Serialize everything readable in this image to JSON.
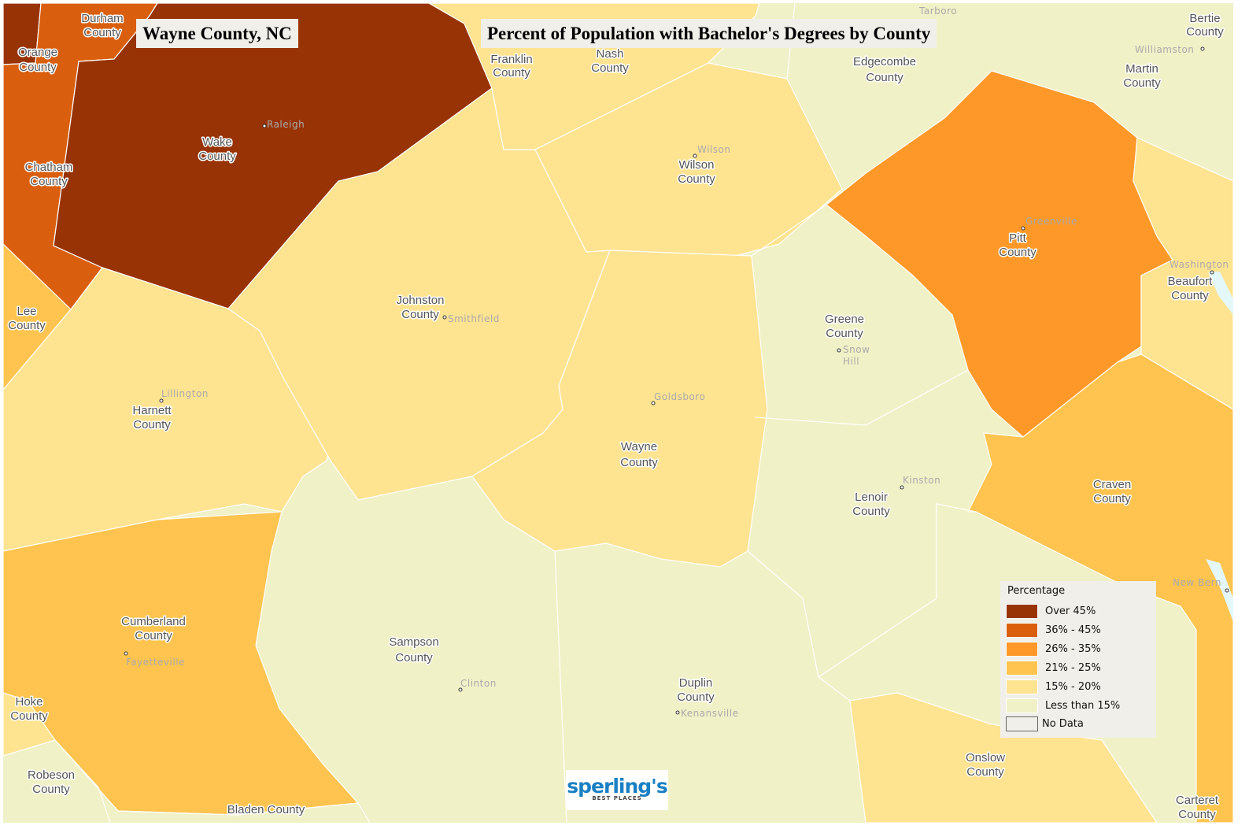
{
  "title_left": "Wayne County, NC",
  "title_right": "Percent of Population with Bachelor's Degrees by County",
  "colors": {
    "over_45": "#983305",
    "36_45": "#d95f0e",
    "26_35": "#fe9929",
    "21_25": "#fec44f",
    "15_20": "#fee391",
    "under_15": "#f1f1c8",
    "no_data": "#f0efe9",
    "water": "#e4f8fa"
  },
  "legend": {
    "title": "Percentage",
    "items": [
      {
        "label": "Over 45%",
        "color": "#983305"
      },
      {
        "label": "36% - 45%",
        "color": "#d95f0e"
      },
      {
        "label": "26% - 35%",
        "color": "#fe9929"
      },
      {
        "label": "21% - 25%",
        "color": "#fec44f"
      },
      {
        "label": "15% - 20%",
        "color": "#fee391"
      },
      {
        "label": "Less than 15%",
        "color": "#f1f1c8"
      },
      {
        "label": "No Data",
        "color": "#f0efe9"
      }
    ]
  },
  "counties": {
    "durham": [
      "Durham",
      "County"
    ],
    "orange": [
      "Orange",
      "County"
    ],
    "wake": [
      "Wake",
      "County"
    ],
    "chatham": [
      "Chatham",
      "County"
    ],
    "lee": [
      "Lee",
      "County"
    ],
    "harnett": [
      "Harnett",
      "County"
    ],
    "johnston": [
      "Johnston",
      "County"
    ],
    "franklin": [
      "Franklin",
      "County"
    ],
    "nash": [
      "Nash",
      "County"
    ],
    "wilson": [
      "Wilson",
      "County"
    ],
    "edgecombe": [
      "Edgecombe",
      "County"
    ],
    "martin": [
      "Martin",
      "County"
    ],
    "bertie": [
      "Bertie",
      "County"
    ],
    "pitt": [
      "Pitt",
      "County"
    ],
    "beaufort": [
      "Beaufort",
      "County"
    ],
    "greene": [
      "Greene",
      "County"
    ],
    "wayne": [
      "Wayne",
      "County"
    ],
    "lenoir": [
      "Lenoir",
      "County"
    ],
    "craven": [
      "Craven",
      "County"
    ],
    "cumberland": [
      "Cumberland",
      "County"
    ],
    "sampson": [
      "Sampson",
      "County"
    ],
    "duplin": [
      "Duplin",
      "County"
    ],
    "hoke": [
      "Hoke",
      "County"
    ],
    "robeson": [
      "Robeson",
      "County"
    ],
    "bladen": "Bladen County",
    "onslow": [
      "Onslow",
      "County"
    ],
    "carteret": [
      "Carteret",
      "County"
    ]
  },
  "cities": {
    "raleigh": "Raleigh",
    "wilson": "Wilson",
    "greenville": "Greenville",
    "washington": "Washington",
    "williamston": "Williamston",
    "tarboro": "Tarboro",
    "smithfield": "Smithfield",
    "lillington": "Lillington",
    "goldsboro": "Goldsboro",
    "snow_hill": [
      "Snow",
      "Hill"
    ],
    "kinston": "Kinston",
    "fayetteville": "Fayetteville",
    "clinton": "Clinton",
    "kenansville": "Kenansville",
    "new_bern": "New Bern"
  },
  "logo": {
    "brand": "sperling's",
    "tagline": "BEST PLACES"
  }
}
